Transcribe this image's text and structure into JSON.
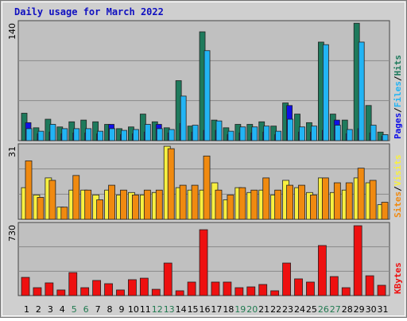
{
  "chart_data": [
    {
      "type": "bar",
      "title": "Daily usage for March 2022",
      "legend_separator": "/",
      "ylim": [
        0,
        140
      ],
      "yticks": [
        140
      ],
      "series": [
        {
          "name": "Pages",
          "color": "#1010e8",
          "values": [
            21,
            8,
            10,
            8,
            9,
            9,
            8,
            19,
            7,
            8,
            10,
            19,
            9,
            20,
            10,
            12,
            12,
            7,
            9,
            9,
            10,
            7,
            41,
            10,
            10,
            12,
            24,
            8,
            14,
            9,
            5
          ]
        },
        {
          "name": "Files",
          "color": "#22b4f4",
          "values": [
            14,
            11,
            19,
            14,
            14,
            14,
            11,
            14,
            12,
            13,
            19,
            14,
            13,
            52,
            18,
            105,
            23,
            11,
            16,
            16,
            17,
            11,
            25,
            16,
            17,
            112,
            18,
            13,
            115,
            18,
            7
          ]
        },
        {
          "name": "Hits",
          "color": "#1e7a5c",
          "values": [
            32,
            15,
            25,
            16,
            22,
            24,
            22,
            19,
            14,
            16,
            31,
            22,
            15,
            70,
            17,
            127,
            24,
            15,
            19,
            19,
            22,
            17,
            44,
            31,
            21,
            115,
            31,
            24,
            137,
            41,
            10
          ]
        }
      ]
    },
    {
      "type": "bar",
      "ylim": [
        0,
        31
      ],
      "yticks": [
        31
      ],
      "series": [
        {
          "name": "Sites",
          "color": "#f08a10",
          "values": [
            24,
            9,
            16,
            5,
            18,
            12,
            8,
            14,
            12,
            10,
            12,
            12,
            29,
            14,
            14,
            26,
            12,
            10,
            13,
            12,
            17,
            12,
            14,
            14,
            10,
            17,
            15,
            15,
            21,
            16,
            7
          ]
        },
        {
          "name": "Visits",
          "color": "#f8f040",
          "values": [
            13,
            10,
            17,
            5,
            12,
            12,
            10,
            12,
            10,
            11,
            10,
            11,
            30,
            13,
            12,
            12,
            15,
            8,
            13,
            11,
            12,
            10,
            16,
            13,
            11,
            17,
            11,
            12,
            17,
            15,
            6
          ]
        }
      ]
    },
    {
      "type": "bar",
      "ylim": [
        0,
        730
      ],
      "yticks": [
        730
      ],
      "categories": [
        "1",
        "2",
        "3",
        "4",
        "5",
        "6",
        "7",
        "8",
        "9",
        "10",
        "11",
        "12",
        "13",
        "14",
        "15",
        "16",
        "17",
        "18",
        "19",
        "20",
        "21",
        "22",
        "23",
        "24",
        "25",
        "26",
        "27",
        "28",
        "29",
        "30",
        "31"
      ],
      "category_colors": [
        "#000000",
        "#000000",
        "#000000",
        "#000000",
        "#207a50",
        "#207a50",
        "#000000",
        "#000000",
        "#000000",
        "#000000",
        "#000000",
        "#207a50",
        "#207a50",
        "#000000",
        "#000000",
        "#000000",
        "#000000",
        "#000000",
        "#207a50",
        "#207a50",
        "#000000",
        "#000000",
        "#000000",
        "#000000",
        "#000000",
        "#207a50",
        "#207a50",
        "#000000",
        "#000000",
        "#000000",
        "#000000"
      ],
      "series": [
        {
          "name": "KBytes",
          "color": "#ee1010",
          "values": [
            182,
            79,
            127,
            56,
            230,
            79,
            151,
            119,
            56,
            159,
            174,
            63,
            325,
            48,
            135,
            658,
            135,
            135,
            79,
            87,
            111,
            48,
            325,
            167,
            135,
            500,
            190,
            79,
            698,
            198,
            103
          ]
        }
      ]
    }
  ]
}
